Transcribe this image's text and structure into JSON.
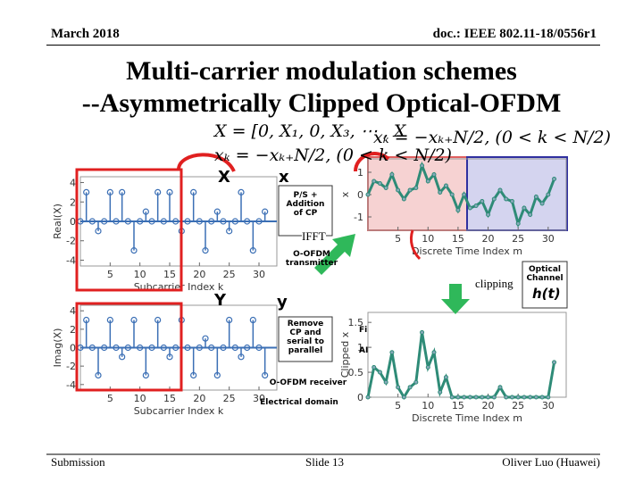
{
  "header": {
    "date": "March 2018",
    "doc": "doc.: IEEE 802.11-18/0556r1"
  },
  "title": {
    "line1": "Multi-carrier modulation schemes",
    "line2": "--Asymmetrically Clipped Optical-OFDM"
  },
  "equations": {
    "freq": "X = [0, X₁, 0, X₃, ⋯ , X",
    "time_top": "xₖ = −xₖ₊N/2, (0 < k < N/2)",
    "time_left": "xₖ = −xₖ₊N/2, (0 < k < N/2)"
  },
  "symbols": {
    "X": "X",
    "Y": "Y",
    "x": "x",
    "y": "y",
    "h": "h(t)"
  },
  "blocks": {
    "ps": "P/S + Addition of CP",
    "tx": "O-OFDM transmitter",
    "channel": "Optical Channel",
    "rx_block": "Remove CP and serial to parallel",
    "rx": "O-OFDM receiver",
    "electrical": "Electrical domain",
    "partial": "Fi",
    "partial2": "AI"
  },
  "annotations": {
    "ifft": "IFFT",
    "clipping": "clipping"
  },
  "plots": [
    {
      "ylabel": "Real(X)",
      "xlabel": "Subcarrier Index k",
      "kind": "stem",
      "ylim": [
        -4.6,
        4.6
      ],
      "yticks": [
        "4",
        "2",
        "0",
        "-2",
        "-4"
      ],
      "xlim": [
        0,
        33
      ],
      "xticks": [
        "5",
        "10",
        "15",
        "20",
        "25",
        "30"
      ],
      "values": [
        0,
        3,
        0,
        -1,
        0,
        3,
        0,
        3,
        0,
        -3,
        0,
        1,
        0,
        3,
        0,
        3,
        0,
        -1,
        0,
        3,
        0,
        -3,
        0,
        1,
        0,
        -1,
        0,
        3,
        0,
        -3,
        0,
        1
      ]
    },
    {
      "ylabel": "Imag(X)",
      "xlabel": "Subcarrier Index k",
      "kind": "stem",
      "ylim": [
        -4.6,
        4.6
      ],
      "yticks": [
        "4",
        "2",
        "0",
        "-2",
        "-4"
      ],
      "xlim": [
        0,
        33
      ],
      "xticks": [
        "5",
        "10",
        "15",
        "20",
        "25",
        "30"
      ],
      "values": [
        0,
        3,
        0,
        -3,
        0,
        3,
        0,
        -1,
        0,
        3,
        0,
        -3,
        0,
        3,
        0,
        -1,
        0,
        3,
        0,
        -3,
        0,
        1,
        0,
        -3,
        0,
        3,
        0,
        -1,
        0,
        3,
        0,
        -3
      ]
    },
    {
      "ylabel": "x",
      "xlabel": "Discrete Time Index m",
      "kind": "line",
      "ylim": [
        -1.6,
        1.6
      ],
      "yticks": [
        "1",
        "0",
        "-1"
      ],
      "xlim": [
        0,
        33
      ],
      "xticks": [
        "5",
        "10",
        "15",
        "20",
        "25",
        "30"
      ],
      "values": [
        0,
        0.6,
        0.5,
        0.3,
        0.9,
        0.2,
        -0.2,
        0.2,
        0.3,
        1.3,
        0.6,
        0.9,
        0.1,
        0.4,
        0,
        -0.7,
        0,
        -0.6,
        -0.5,
        -0.3,
        -0.9,
        -0.2,
        0.2,
        -0.2,
        -0.3,
        -1.3,
        -0.6,
        -0.9,
        -0.1,
        -0.4,
        0,
        0.7
      ]
    },
    {
      "ylabel": "Clipped x",
      "xlabel": "Discrete Time Index m",
      "kind": "line",
      "ylim": [
        0,
        1.7
      ],
      "yticks": [
        "1.5",
        "1",
        "0.5",
        "0"
      ],
      "xlim": [
        0,
        33
      ],
      "xticks": [
        "5",
        "10",
        "15",
        "20",
        "25",
        "30"
      ],
      "values": [
        0,
        0.6,
        0.5,
        0.3,
        0.9,
        0.2,
        0,
        0.2,
        0.3,
        1.3,
        0.6,
        0.9,
        0.1,
        0.4,
        0,
        0,
        0,
        0,
        0,
        0,
        0,
        0,
        0.2,
        0,
        0,
        0,
        0,
        0,
        0,
        0,
        0,
        0.7
      ]
    }
  ],
  "footer": {
    "left": "Submission",
    "center": "Slide 13",
    "right": "Oliver Luo (Huawei)"
  }
}
